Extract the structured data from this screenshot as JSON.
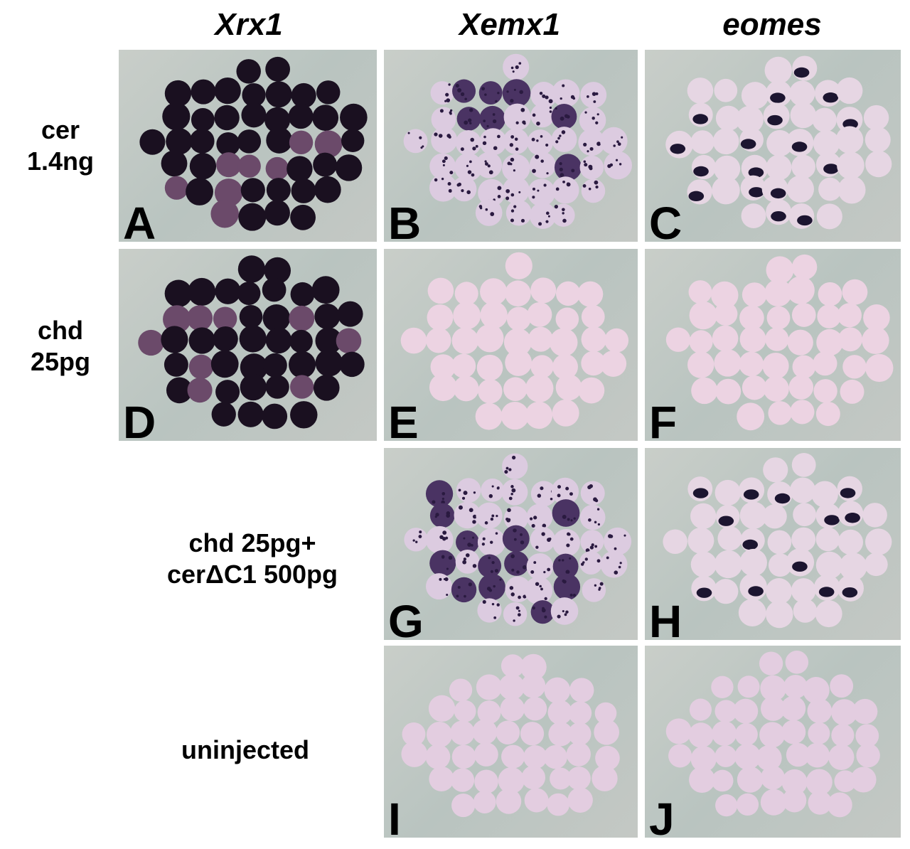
{
  "columns": [
    "Xrx1",
    "Xemx1",
    "eomes"
  ],
  "rows": [
    "cer\n1.4ng",
    "chd\n25pg",
    "chd 25pg+\ncerΔC1 500pg",
    "uninjected"
  ],
  "panels": [
    {
      "letter": "A"
    },
    {
      "letter": "B"
    },
    {
      "letter": "C"
    },
    {
      "letter": "D"
    },
    {
      "letter": "E"
    },
    {
      "letter": "F"
    },
    {
      "letter": "G"
    },
    {
      "letter": "H"
    },
    {
      "letter": "I"
    },
    {
      "letter": "J"
    }
  ]
}
